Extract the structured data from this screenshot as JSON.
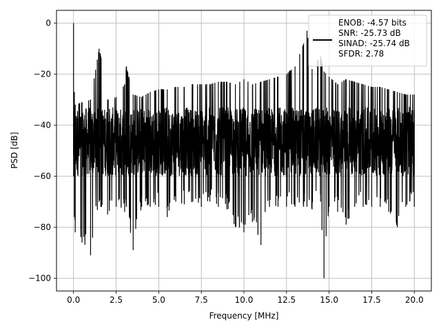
{
  "chart_data": {
    "type": "line",
    "xlabel": "Frequency [MHz]",
    "ylabel": "PSD [dB]",
    "xlim": [
      -1.0,
      21.0
    ],
    "ylim": [
      -105,
      5
    ],
    "xticks": [
      0.0,
      2.5,
      5.0,
      7.5,
      10.0,
      12.5,
      15.0,
      17.5,
      20.0
    ],
    "xtick_labels": [
      "0.0",
      "2.5",
      "5.0",
      "7.5",
      "10.0",
      "12.5",
      "15.0",
      "17.5",
      "20.0"
    ],
    "yticks": [
      0,
      -20,
      -40,
      -60,
      -80,
      -100
    ],
    "ytick_labels": [
      "0",
      "−20",
      "−40",
      "−60",
      "−80",
      "−100"
    ],
    "grid": true,
    "legend_position": "top-right",
    "series": [
      {
        "name": "ENOB: -4.57 bits\nSNR: -25.73 dB\nSINAD: -25.74 dB\nSFDR: 2.78",
        "color": "#000000",
        "envelope": {
          "x": [
            0.0,
            0.05,
            0.1,
            0.5,
            1.0,
            1.5,
            1.6,
            2.0,
            2.5,
            3.0,
            3.1,
            3.5,
            4.0,
            4.5,
            5.0,
            5.5,
            6.0,
            6.5,
            7.0,
            7.5,
            8.0,
            8.5,
            9.0,
            9.5,
            10.0,
            10.5,
            11.0,
            11.5,
            12.0,
            12.5,
            13.0,
            13.5,
            13.7,
            14.0,
            14.5,
            14.7,
            15.0,
            15.5,
            16.0,
            16.5,
            17.0,
            17.5,
            18.0,
            18.5,
            19.0,
            19.5,
            20.0
          ],
          "upper": [
            0,
            -27,
            -32,
            -31,
            -30,
            -10,
            -13,
            -30,
            -29,
            -24,
            -17,
            -28,
            -29,
            -27,
            -26,
            -26,
            -25,
            -25,
            -24,
            -24,
            -24,
            -23,
            -23,
            -24,
            -22,
            -24,
            -23,
            -22,
            -21,
            -20,
            -17,
            -8,
            -3,
            -18,
            -13,
            -19,
            -21,
            -24,
            -22,
            -23,
            -24,
            -25,
            -25,
            -26,
            -27,
            -28,
            -28
          ],
          "lower": [
            -60,
            -76,
            -82,
            -86,
            -91,
            -70,
            -72,
            -75,
            -72,
            -74,
            -72,
            -89,
            -72,
            -72,
            -72,
            -76,
            -70,
            -71,
            -70,
            -72,
            -70,
            -72,
            -73,
            -80,
            -82,
            -78,
            -87,
            -72,
            -72,
            -72,
            -72,
            -72,
            -72,
            -73,
            -70,
            -100,
            -72,
            -74,
            -79,
            -72,
            -72,
            -72,
            -72,
            -74,
            -80,
            -72,
            -72
          ]
        },
        "band_upper": -33,
        "band_lower": -60
      }
    ]
  }
}
